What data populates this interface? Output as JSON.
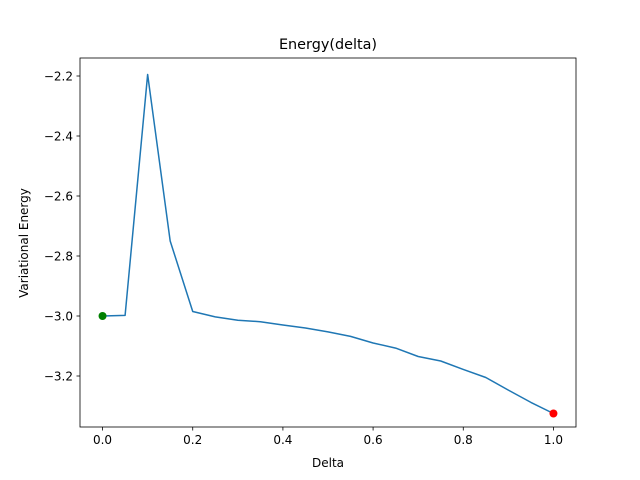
{
  "chart_data": {
    "type": "line",
    "title": "Energy(delta)",
    "xlabel": "Delta",
    "ylabel": "Variational Energy",
    "xlim": [
      -0.05,
      1.05
    ],
    "ylim": [
      -3.37,
      -2.14
    ],
    "xticks": [
      0.0,
      0.2,
      0.4,
      0.6,
      0.8,
      1.0
    ],
    "xtick_labels": [
      "0.0",
      "0.2",
      "0.4",
      "0.6",
      "0.8",
      "1.0"
    ],
    "yticks": [
      -3.2,
      -3.0,
      -2.8,
      -2.6,
      -2.4,
      -2.2
    ],
    "ytick_labels": [
      "−3.2",
      "−3.0",
      "−2.8",
      "−2.6",
      "−2.4",
      "−2.2"
    ],
    "grid": false,
    "series": [
      {
        "color": "#1f77b4",
        "x": [
          0.0,
          0.05,
          0.1,
          0.15,
          0.2,
          0.25,
          0.3,
          0.35,
          0.4,
          0.45,
          0.5,
          0.55,
          0.6,
          0.65,
          0.7,
          0.75,
          0.8,
          0.85,
          0.9,
          0.95,
          1.0
        ],
        "y": [
          -3.0,
          -2.998,
          -2.195,
          -2.75,
          -2.985,
          -3.003,
          -3.014,
          -3.019,
          -3.03,
          -3.04,
          -3.053,
          -3.068,
          -3.09,
          -3.107,
          -3.135,
          -3.15,
          -3.178,
          -3.205,
          -3.247,
          -3.288,
          -3.325
        ]
      }
    ],
    "markers": [
      {
        "x": 0.0,
        "y": -3.0,
        "color": "#008000"
      },
      {
        "x": 1.0,
        "y": -3.325,
        "color": "#ff0000"
      }
    ]
  }
}
